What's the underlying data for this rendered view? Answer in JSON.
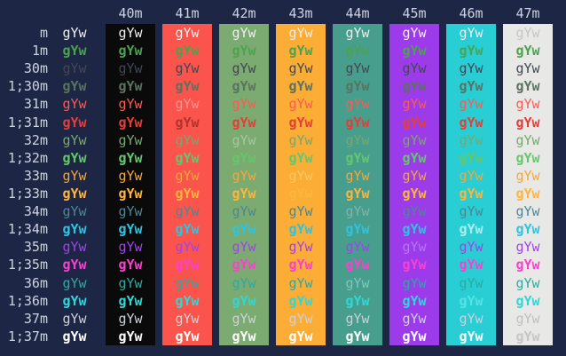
{
  "terminal": {
    "cell_text": "gYw",
    "palette": {
      "page_bg": "#1e2645",
      "label_color": "#ccd3e0"
    },
    "columns": [
      {
        "label": "40m",
        "bg": "#0a0a0a"
      },
      {
        "label": "41m",
        "bg": "#fa544c"
      },
      {
        "label": "42m",
        "bg": "#7bab70"
      },
      {
        "label": "43m",
        "bg": "#fbad35"
      },
      {
        "label": "44m",
        "bg": "#479e8d"
      },
      {
        "label": "45m",
        "bg": "#9b3bea"
      },
      {
        "label": "46m",
        "bg": "#28ced3"
      },
      {
        "label": "47m",
        "bg": "#e8e8e6"
      }
    ],
    "rows": [
      {
        "label": "m",
        "fg": "#eeeeee",
        "bold": false
      },
      {
        "label": "1m",
        "fg": "#4ba34f",
        "bold": true
      },
      {
        "label": "30m",
        "fg": "#414754",
        "bold": false
      },
      {
        "label": "1;30m",
        "fg": "#5a7260",
        "bold": true
      },
      {
        "label": "31m",
        "fg": "#fc5a52",
        "bold": false
      },
      {
        "label": "1;31m",
        "fg": "#e33e38",
        "bold": true
      },
      {
        "label": "32m",
        "fg": "#78a76e",
        "bold": false
      },
      {
        "label": "1;32m",
        "fg": "#65c76c",
        "bold": true
      },
      {
        "label": "33m",
        "fg": "#f2a73d",
        "bold": false
      },
      {
        "label": "1;33m",
        "fg": "#fdb53e",
        "bold": true
      },
      {
        "label": "34m",
        "fg": "#4d8695",
        "bold": false
      },
      {
        "label": "1;34m",
        "fg": "#30c3df",
        "bold": true
      },
      {
        "label": "35m",
        "fg": "#a043e8",
        "bold": false
      },
      {
        "label": "1;35m",
        "fg": "#fb3fd0",
        "bold": true
      },
      {
        "label": "36m",
        "fg": "#2baaa2",
        "bold": false
      },
      {
        "label": "1;36m",
        "fg": "#2fd8d8",
        "bold": true
      },
      {
        "label": "37m",
        "fg": "#ccd1d9",
        "bold": false
      },
      {
        "label": "1;37m",
        "fg": "#ffffff",
        "bold": true
      }
    ],
    "cell_color_overrides": {
      "m|47m": "#c6c6c6",
      "31m|41m": "#ff938c",
      "1;31m|41m": "#b5322c",
      "32m|42m": "#a5c79a",
      "33m|43m": "#fdc75f",
      "34m|44m": "#83b2a9",
      "36m|44m": "#7cc8c0",
      "35m|45m": "#b577f0",
      "1;34m|46m": "#aceef2",
      "1;36m|46m": "#55e3e6",
      "37m|47m": "#bfbfbf",
      "1;37m|47m": "#c6c6c6"
    }
  }
}
